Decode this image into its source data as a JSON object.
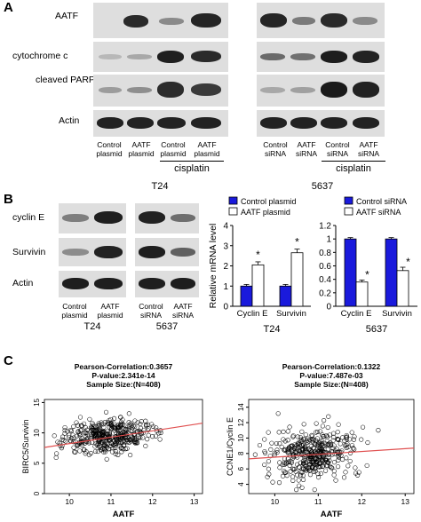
{
  "panel_a": {
    "letter": "A",
    "rows": [
      "AATF",
      "cytochrome c",
      "cleaved PARP",
      "Actin"
    ],
    "t24": {
      "lanes": [
        "Control plasmid",
        "AATF plasmid",
        "Control plasmid",
        "AATF plasmid"
      ],
      "treatment": "cisplatin",
      "cell_line": "T24"
    },
    "c5637": {
      "lanes": [
        "Control siRNA",
        "AATF siRNA",
        "Control siRNA",
        "AATF siRNA"
      ],
      "treatment": "cisplatin",
      "cell_line": "5637"
    }
  },
  "panel_b": {
    "letter": "B",
    "rows": [
      "cyclin E",
      "Survivin",
      "Actin"
    ],
    "t24": {
      "lanes": [
        "Control plasmid",
        "AATF plasmid"
      ],
      "cell_line": "T24"
    },
    "c5637": {
      "lanes": [
        "Control siRNA",
        "AATF siRNA"
      ],
      "cell_line": "5637"
    }
  },
  "panel_c": {
    "letter": "C"
  },
  "chart_data": [
    {
      "type": "bar",
      "categories": [
        "Cyclin E",
        "Survivin"
      ],
      "series": [
        {
          "name": "Control plasmid",
          "values": [
            1.0,
            1.0
          ],
          "errors": [
            0.08,
            0.08
          ],
          "color": "#1a1adc"
        },
        {
          "name": "AATF plasmid",
          "values": [
            2.05,
            2.65
          ],
          "errors": [
            0.15,
            0.18
          ],
          "color": "#ffffff"
        }
      ],
      "ylabel": "Relative mRNA level",
      "yticks": [
        "0",
        "1",
        "2",
        "3",
        "4"
      ],
      "ylim": [
        0,
        4
      ],
      "xlabel": "T24",
      "significance": [
        "*",
        "*"
      ],
      "legend": "top"
    },
    {
      "type": "bar",
      "categories": [
        "Cyclin E",
        "Survivin"
      ],
      "series": [
        {
          "name": "Control siRNA",
          "values": [
            1.0,
            1.0
          ],
          "errors": [
            0.02,
            0.02
          ],
          "color": "#1a1adc"
        },
        {
          "name": "AATF siRNA",
          "values": [
            0.36,
            0.53
          ],
          "errors": [
            0.03,
            0.05
          ],
          "color": "#ffffff"
        }
      ],
      "yticks": [
        "0",
        "0.2",
        "0.4",
        "0.6",
        "0.8",
        "1",
        "1.2"
      ],
      "ylim": [
        0,
        1.2
      ],
      "xlabel": "5637",
      "significance": [
        "*",
        "*"
      ],
      "legend": "top"
    },
    {
      "type": "scatter",
      "title": "Pearson-Correlation:0.3657",
      "subtitle_lines": [
        "P-value:2.341e-14",
        "Sample Size:(N=408)"
      ],
      "xlabel": "AATF",
      "ylabel": "BIRC5/Survivin",
      "xticks": [
        "10",
        "11",
        "12",
        "13"
      ],
      "yticks": [
        "0",
        "5",
        "10",
        "15"
      ],
      "xlim": [
        9.4,
        13.2
      ],
      "ylim": [
        0,
        15.5
      ],
      "trend": {
        "x": [
          9.4,
          13.2
        ],
        "y": [
          7.6,
          11.6
        ],
        "color": "#e05050"
      },
      "n_points": 408,
      "center": [
        10.9,
        9.4
      ],
      "spread": [
        0.5,
        1.4
      ]
    },
    {
      "type": "scatter",
      "title": "Pearson-Correlation:0.1322",
      "subtitle_lines": [
        "P-value:7.487e-03",
        "Sample Size:(N=408)"
      ],
      "xlabel": "AATF",
      "ylabel": "CCNE1/Cyclin E",
      "xticks": [
        "10",
        "11",
        "12",
        "13"
      ],
      "yticks": [
        "4",
        "6",
        "8",
        "10",
        "12",
        "14"
      ],
      "xlim": [
        9.4,
        13.2
      ],
      "ylim": [
        2.8,
        15
      ],
      "trend": {
        "x": [
          9.4,
          13.2
        ],
        "y": [
          7.3,
          8.7
        ],
        "color": "#e05050"
      },
      "n_points": 408,
      "center": [
        10.9,
        8.0
      ],
      "spread": [
        0.5,
        1.7
      ]
    }
  ]
}
